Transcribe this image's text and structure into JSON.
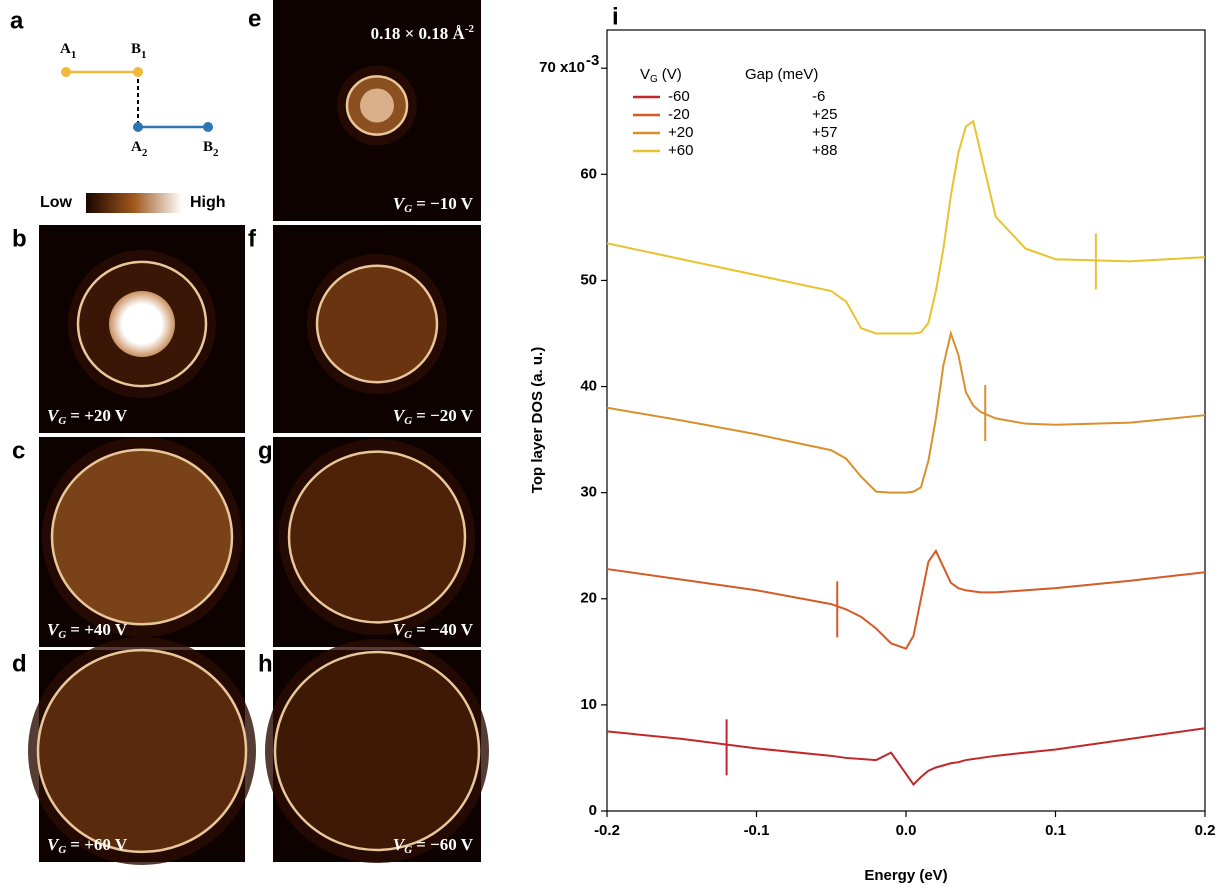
{
  "schematic": {
    "letter": "a",
    "sites": [
      {
        "name": "A",
        "index": "1"
      },
      {
        "name": "B",
        "index": "1"
      },
      {
        "name": "A",
        "index": "2"
      },
      {
        "name": "B",
        "index": "2"
      }
    ]
  },
  "colorbar": {
    "low": "Low",
    "high": "High"
  },
  "gate": {
    "symbol": "V",
    "subscript": "G"
  },
  "maps": [
    {
      "letter": "b",
      "text": "= +20 V"
    },
    {
      "letter": "c",
      "text": "= +40 V"
    },
    {
      "letter": "d",
      "text": "= +60 V"
    },
    {
      "letter": "e",
      "text": "= −10 V"
    },
    {
      "letter": "f",
      "text": "= −20 V"
    },
    {
      "letter": "g",
      "text": "= −40 V"
    },
    {
      "letter": "h",
      "text": "= −60 V"
    }
  ],
  "scale_label": {
    "text": "0.18 × 0.18 Å",
    "exponent": "-2"
  },
  "chart_data": {
    "type": "line",
    "letter": "i",
    "x_label": "Energy (eV)",
    "y_label": "Top layer DOS (a. u.)",
    "legend_title": {
      "symbol": "V",
      "subscript": "G",
      "unit": "(V)"
    },
    "gap_title": "Gap (meV)",
    "xlim": [
      -0.2,
      0.2
    ],
    "ylim": [
      0,
      73.6
    ],
    "xticks": [
      -0.2,
      -0.1,
      {
        "value": 0,
        "label": "0.0"
      },
      0.1,
      0.2
    ],
    "yticks": [
      0,
      10,
      20,
      30,
      40,
      50,
      60,
      {
        "value": 70,
        "label": "70 x10"
      }
    ],
    "ytick_exponent": "-3",
    "x": [
      -0.2,
      -0.15,
      -0.1,
      -0.05,
      -0.04,
      -0.03,
      -0.02,
      -0.01,
      0,
      0.005,
      0.01,
      0.015,
      0.02,
      0.025,
      0.03,
      0.035,
      0.04,
      0.045,
      0.05,
      0.06,
      0.08,
      0.1,
      0.15,
      0.2
    ],
    "series": [
      {
        "name": "-60",
        "gap": "-6",
        "color": "#c0282a",
        "marker_x": -0.12,
        "marker_y": 6,
        "values": [
          7.5,
          6.8,
          5.9,
          5.2,
          5.0,
          4.9,
          4.8,
          5.5,
          3.5,
          2.5,
          3.2,
          3.8,
          4.1,
          4.3,
          4.5,
          4.6,
          4.8,
          4.9,
          5.0,
          5.2,
          5.5,
          5.8,
          6.8,
          7.8
        ]
      },
      {
        "name": "-20",
        "gap": "+25",
        "color": "#d45a27",
        "marker_x": -0.046,
        "marker_y": 19,
        "values": [
          22.8,
          21.8,
          20.8,
          19.5,
          19.0,
          18.3,
          17.2,
          15.8,
          15.3,
          16.5,
          20.0,
          23.5,
          24.5,
          23.0,
          21.5,
          21.0,
          20.8,
          20.7,
          20.6,
          20.6,
          20.8,
          21.0,
          21.7,
          22.5
        ]
      },
      {
        "name": "+20",
        "gap": "+57",
        "color": "#d9902c",
        "marker_x": 0.053,
        "marker_y": 37.5,
        "values": [
          38.0,
          36.8,
          35.5,
          34.0,
          33.2,
          31.5,
          30.1,
          30.0,
          30.0,
          30.1,
          30.5,
          33.0,
          37.0,
          42.0,
          45.0,
          43.0,
          39.5,
          38.2,
          37.6,
          37.0,
          36.5,
          36.4,
          36.6,
          37.3
        ]
      },
      {
        "name": "+60",
        "gap": "+88",
        "color": "#e8c32d",
        "marker_x": 0.127,
        "marker_y": 51.8,
        "values": [
          53.5,
          52.0,
          50.5,
          49.0,
          48.0,
          45.5,
          45.0,
          45.0,
          45.0,
          45.0,
          45.1,
          46.0,
          49.0,
          53.0,
          58.0,
          62.0,
          64.5,
          65.0,
          62.0,
          56.0,
          53.0,
          52.0,
          51.8,
          52.2
        ]
      }
    ]
  }
}
